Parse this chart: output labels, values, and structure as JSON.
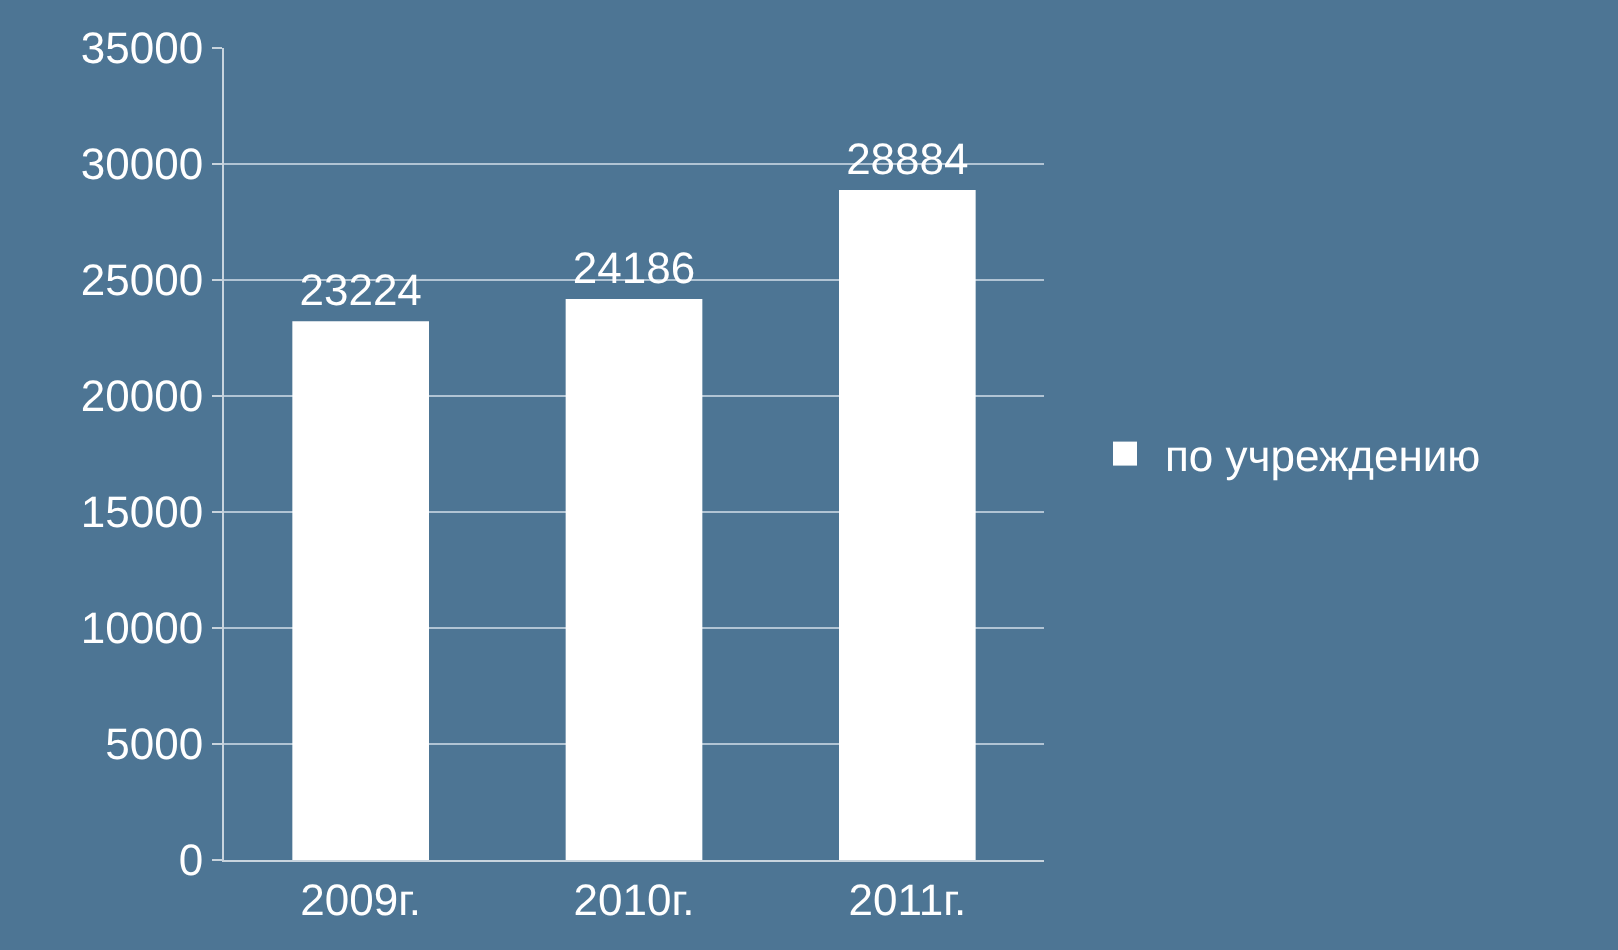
{
  "chart_data": {
    "type": "bar",
    "categories": [
      "2009г.",
      "2010г.",
      "2011г."
    ],
    "series": [
      {
        "name": "по учреждению",
        "color": "#ffffff",
        "values": [
          23224,
          24186,
          28884
        ]
      }
    ],
    "ylim": [
      0,
      35000
    ],
    "yticks": [
      0,
      5000,
      10000,
      15000,
      20000,
      25000,
      30000,
      35000
    ],
    "grid": "y",
    "legend": "right",
    "data_labels": true
  }
}
